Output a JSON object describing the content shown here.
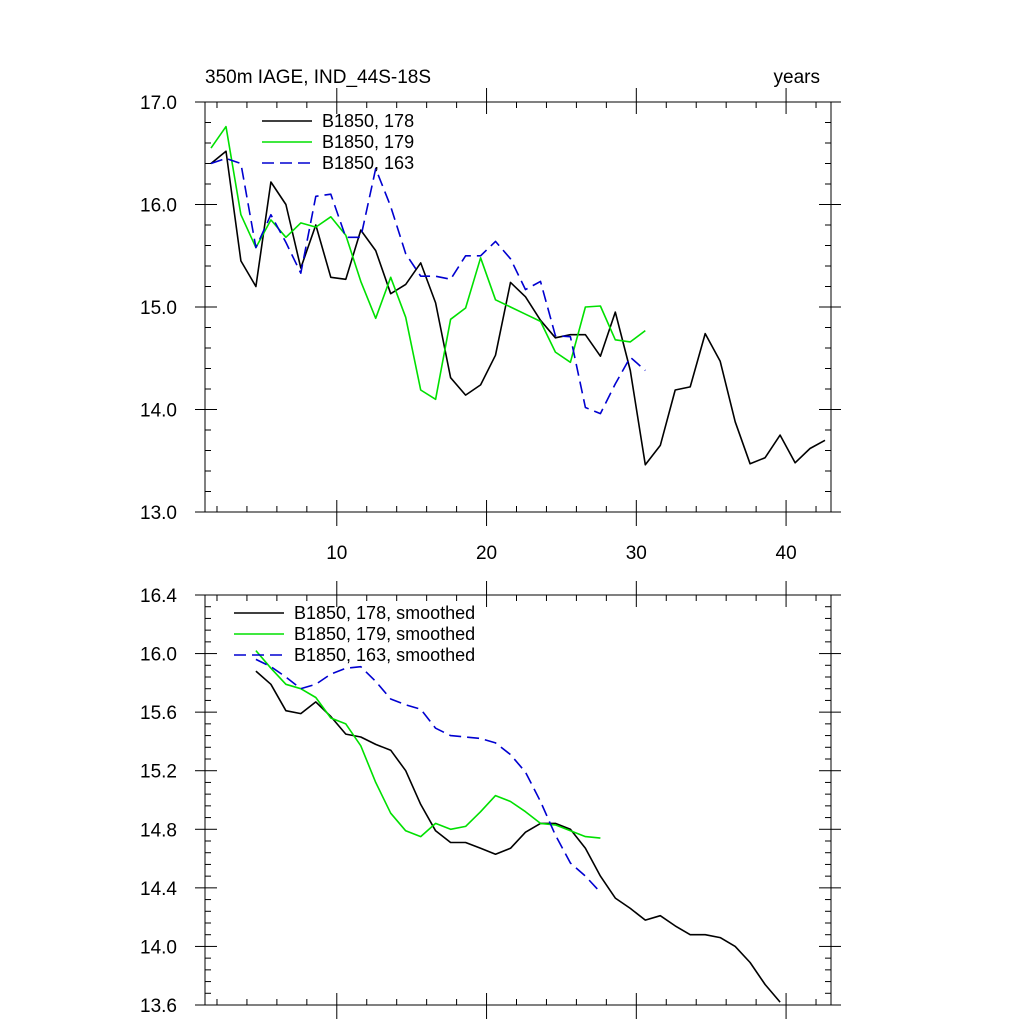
{
  "chart_data": [
    {
      "type": "line",
      "title_left": "350m IAGE, IND_44S-18S",
      "title_right": "years",
      "xlabel": "",
      "ylabel": "",
      "xlim": [
        1.2,
        43
      ],
      "ylim": [
        13.0,
        17.0
      ],
      "x_ticks": [
        10,
        20,
        30,
        40
      ],
      "x_tick_labels": [
        "10",
        "20",
        "30",
        "40"
      ],
      "x_minor_step": 2,
      "y_ticks": [
        13.0,
        14.0,
        15.0,
        16.0,
        17.0
      ],
      "y_tick_labels": [
        "13.0",
        "14.0",
        "15.0",
        "16.0",
        "17.0"
      ],
      "y_minor_step": 0.2,
      "legend_position": "top-left",
      "series": [
        {
          "name": "B1850, 178",
          "color": "#000000",
          "dash": "solid",
          "x_start": 1.6,
          "values": [
            16.4,
            16.52,
            15.45,
            15.2,
            16.22,
            16.0,
            15.38,
            15.8,
            15.29,
            15.27,
            15.75,
            15.55,
            15.13,
            15.22,
            15.43,
            15.04,
            14.31,
            14.14,
            14.24,
            14.53,
            15.24,
            15.1,
            14.87,
            14.7,
            14.73,
            14.73,
            14.52,
            14.95,
            14.38,
            13.46,
            13.65,
            14.19,
            14.22,
            14.74,
            14.47,
            13.88,
            13.47,
            13.53,
            13.75,
            13.48,
            13.62,
            13.7
          ]
        },
        {
          "name": "B1850, 179",
          "color": "#00e000",
          "dash": "solid",
          "x_start": 1.6,
          "values": [
            16.55,
            16.76,
            15.9,
            15.58,
            15.85,
            15.68,
            15.82,
            15.78,
            15.88,
            15.7,
            15.25,
            14.89,
            15.29,
            14.9,
            14.19,
            14.1,
            14.88,
            14.99,
            15.48,
            15.07,
            15.0,
            14.93,
            14.86,
            14.56,
            14.46,
            15.0,
            15.01,
            14.68,
            14.66,
            14.77
          ]
        },
        {
          "name": "B1850, 163",
          "color": "#0000d0",
          "dash": "dashed",
          "x_start": 1.6,
          "values": [
            16.4,
            16.45,
            16.4,
            15.58,
            15.9,
            15.63,
            15.33,
            16.08,
            16.1,
            15.68,
            15.68,
            16.35,
            15.98,
            15.52,
            15.3,
            15.3,
            15.27,
            15.5,
            15.5,
            15.64,
            15.47,
            15.17,
            15.25,
            14.72,
            14.71,
            14.02,
            13.96,
            14.25,
            14.51,
            14.38
          ]
        }
      ]
    },
    {
      "type": "line",
      "title_left": "",
      "title_right": "",
      "xlabel": "",
      "ylabel": "",
      "xlim": [
        1.2,
        43
      ],
      "ylim": [
        13.6,
        16.4
      ],
      "x_ticks": [
        10,
        20,
        30,
        40
      ],
      "x_tick_labels": [],
      "x_minor_step": 2,
      "y_ticks": [
        13.6,
        14.0,
        14.4,
        14.8,
        15.2,
        15.6,
        16.0,
        16.4
      ],
      "y_tick_labels": [
        "13.6",
        "14.0",
        "14.4",
        "14.8",
        "15.2",
        "15.6",
        "16.0",
        "16.4"
      ],
      "y_minor_step": 0.08,
      "legend_position": "top-left",
      "series": [
        {
          "name": "B1850, 178, smoothed",
          "color": "#000000",
          "dash": "solid",
          "x_start": 4.6,
          "values": [
            15.88,
            15.79,
            15.61,
            15.59,
            15.67,
            15.57,
            15.45,
            15.43,
            15.38,
            15.34,
            15.2,
            14.97,
            14.79,
            14.71,
            14.71,
            14.67,
            14.63,
            14.67,
            14.78,
            14.84,
            14.84,
            14.8,
            14.67,
            14.48,
            14.33,
            14.26,
            14.18,
            14.21,
            14.14,
            14.08,
            14.08,
            14.06,
            14.0,
            13.89,
            13.74,
            13.62
          ]
        },
        {
          "name": "B1850, 179, smoothed",
          "color": "#00e000",
          "dash": "solid",
          "x_start": 4.6,
          "values": [
            16.02,
            15.9,
            15.79,
            15.76,
            15.7,
            15.56,
            15.52,
            15.37,
            15.12,
            14.91,
            14.79,
            14.75,
            14.84,
            14.8,
            14.82,
            14.92,
            15.03,
            14.99,
            14.92,
            14.84,
            14.83,
            14.79,
            14.75,
            14.74
          ]
        },
        {
          "name": "B1850, 163, smoothed",
          "color": "#0000d0",
          "dash": "dashed",
          "x_start": 4.6,
          "values": [
            15.96,
            15.91,
            15.84,
            15.76,
            15.79,
            15.86,
            15.9,
            15.91,
            15.81,
            15.69,
            15.65,
            15.62,
            15.49,
            15.44,
            15.43,
            15.42,
            15.39,
            15.31,
            15.19,
            14.99,
            14.76,
            14.57,
            14.48,
            14.37
          ]
        }
      ]
    }
  ]
}
